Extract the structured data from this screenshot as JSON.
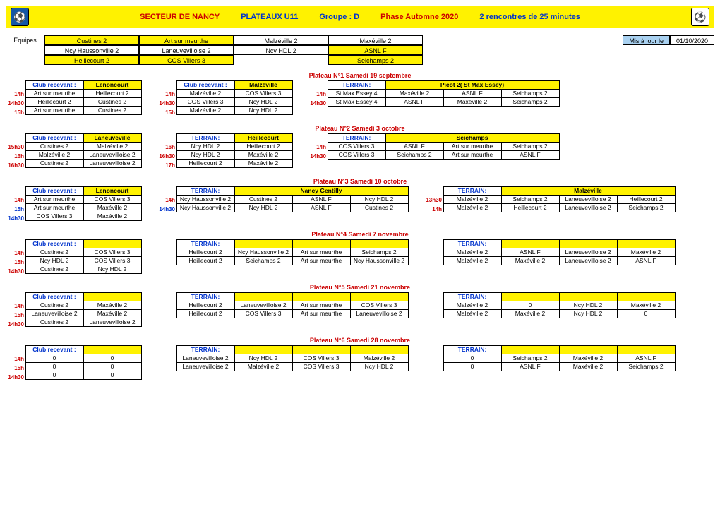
{
  "header": {
    "t1": "SECTEUR DE NANCY",
    "t2": "PLATEAUX U11",
    "t3": "Groupe : D",
    "t4": "Phase Automne 2020",
    "t5": "2 rencontres de 25 minutes"
  },
  "equipes_label": "Equipes",
  "equipes": [
    [
      "Custines 2",
      "Art sur meurthe",
      "Malzéville 2",
      "Maxéville 2"
    ],
    [
      "Ncy Haussonville 2",
      "Laneuvevilloise 2",
      "Ncy HDL 2",
      "ASNL F"
    ],
    [
      "Heillecourt 2",
      "COS Villers  3",
      "",
      "Seichamps 2"
    ]
  ],
  "equipes_yellow": [
    [
      0,
      1
    ],
    [
      3
    ],
    [
      0,
      1,
      3
    ]
  ],
  "maj_label": "Mis à jour le",
  "maj_date": "01/10/2020",
  "club_recevant": "Club recevant :",
  "terrain": "TERRAIN:",
  "plateaux": [
    {
      "title": "Plateau N°1 Samedi 19 septembre",
      "blocks": [
        {
          "w": 2,
          "hdr": [
            "Club recevant :",
            "Lenoncourt"
          ],
          "times": [
            "14h",
            "14h30",
            "15h"
          ],
          "rows": [
            [
              "Art sur meurthe",
              "Heillecourt 2"
            ],
            [
              "Heillecourt 2",
              "Custines 2"
            ],
            [
              "Art sur meurthe",
              "Custines 2"
            ]
          ]
        },
        {
          "w": 2,
          "hdr": [
            "Club recevant :",
            "Malzéville"
          ],
          "times": [
            "14h",
            "14h30",
            "15h"
          ],
          "rows": [
            [
              "Malzéville 2",
              "COS Villers  3"
            ],
            [
              "COS Villers  3",
              "Ncy HDL 2"
            ],
            [
              "Malzéville 2",
              "Ncy HDL 2"
            ]
          ]
        },
        {
          "w": 4,
          "hdr": [
            "TERRAIN:",
            "Picot 2( St Max Essey)",
            "",
            ""
          ],
          "hdrspan": [
            1,
            3
          ],
          "times": [
            "14h",
            "14h30"
          ],
          "rows": [
            [
              "St Max Essey 4",
              "Maxéville 2",
              "ASNL F",
              "Seichamps 2"
            ],
            [
              "St Max Essey 4",
              "ASNL F",
              "Maxéville 2",
              "Seichamps 2"
            ]
          ]
        }
      ]
    },
    {
      "title": "Plateau N°2 Samedi 3 octobre",
      "blocks": [
        {
          "w": 2,
          "hdr": [
            "Club recevant :",
            "Laneuveville"
          ],
          "times": [
            "15h30",
            "16h",
            "16h30"
          ],
          "rows": [
            [
              "Custines 2",
              "Malzéville 2"
            ],
            [
              "Malzéville 2",
              "Laneuvevilloise 2"
            ],
            [
              "Custines 2",
              "Laneuvevilloise 2"
            ]
          ]
        },
        {
          "w": 2,
          "hdr": [
            "TERRAIN:",
            "Heillecourt"
          ],
          "times": [
            "16h",
            "16h30",
            "17h"
          ],
          "rows": [
            [
              "Ncy HDL 2",
              "Heillecourt 2"
            ],
            [
              "Ncy HDL 2",
              "Maxéville 2"
            ],
            [
              "Heillecourt 2",
              "Maxéville 2"
            ]
          ]
        },
        {
          "w": 4,
          "hdr": [
            "TERRAIN:",
            "Seichamps",
            "",
            ""
          ],
          "hdrspan": [
            1,
            3
          ],
          "times": [
            "14h",
            "14h30"
          ],
          "rows": [
            [
              "COS Villers  3",
              "ASNL F",
              "Art sur meurthe",
              "Seichamps 2"
            ],
            [
              "COS Villers  3",
              "Seichamps 2",
              "Art sur meurthe",
              "ASNL F"
            ]
          ]
        }
      ]
    },
    {
      "title": "Plateau N°3 Samedi 10 octobre",
      "blocks": [
        {
          "w": 2,
          "hdr": [
            "Club recevant :",
            "Lenoncourt"
          ],
          "times": [
            "14h",
            "15h",
            "14h30"
          ],
          "timesColor": [
            "red",
            "blue",
            "blue"
          ],
          "rows": [
            [
              "Art sur meurthe",
              "COS Villers  3"
            ],
            [
              "Art sur meurthe",
              "Maxéville 2"
            ],
            [
              "COS Villers  3",
              "Maxéville 2"
            ]
          ]
        },
        {
          "w": 4,
          "hdr": [
            "TERRAIN:",
            "Nancy Gentilly",
            "",
            ""
          ],
          "hdrspan": [
            1,
            3
          ],
          "times": [
            "14h",
            "14h30"
          ],
          "timesColor": [
            "red",
            "blue"
          ],
          "rows": [
            [
              "Ncy Haussonville 2",
              "Custines 2",
              "ASNL F",
              "Ncy HDL 2"
            ],
            [
              "Ncy Haussonville 2",
              "Ncy HDL 2",
              "ASNL F",
              "Custines 2"
            ]
          ]
        },
        {
          "w": 4,
          "hdr": [
            "TERRAIN:",
            "Malzéville",
            "",
            ""
          ],
          "hdrspan": [
            1,
            3
          ],
          "times": [
            "13h30",
            "14h"
          ],
          "rows": [
            [
              "Malzéville 2",
              "Seichamps 2",
              "Laneuvevilloise 2",
              "Heillecourt 2"
            ],
            [
              "Malzéville 2",
              "Heillecourt 2",
              "Laneuvevilloise 2",
              "Seichamps 2"
            ]
          ]
        }
      ]
    },
    {
      "title": "Plateau N°4 Samedi 7 novembre",
      "blocks": [
        {
          "w": 2,
          "hdr": [
            "Club recevant :",
            ""
          ],
          "times": [
            "14h",
            "15h",
            "14h30"
          ],
          "rows": [
            [
              "Custines 2",
              "COS Villers  3"
            ],
            [
              "Ncy HDL 2",
              "COS Villers  3"
            ],
            [
              "Custines 2",
              "Ncy HDL 2"
            ]
          ]
        },
        {
          "w": 4,
          "hdr": [
            "TERRAIN:",
            "",
            "",
            ""
          ],
          "times": [
            "",
            ""
          ],
          "rows": [
            [
              "Heillecourt 2",
              "Ncy Haussonville 2",
              "Art sur meurthe",
              "Seichamps 2"
            ],
            [
              "Heillecourt 2",
              "Seichamps 2",
              "Art sur meurthe",
              "Ncy Haussonville 2"
            ]
          ]
        },
        {
          "w": 4,
          "hdr": [
            "TERRAIN:",
            "",
            "",
            ""
          ],
          "times": [
            "",
            ""
          ],
          "rows": [
            [
              "Malzéville 2",
              "ASNL F",
              "Laneuvevilloise 2",
              "Maxéville 2"
            ],
            [
              "Malzéville 2",
              "Maxéville 2",
              "Laneuvevilloise 2",
              "ASNL F"
            ]
          ]
        }
      ]
    },
    {
      "title": "Plateau N°5 Samedi 21 novembre",
      "blocks": [
        {
          "w": 2,
          "hdr": [
            "Club recevant :",
            ""
          ],
          "times": [
            "14h",
            "15h",
            "14h30"
          ],
          "rows": [
            [
              "Custines 2",
              "Maxéville 2"
            ],
            [
              "Laneuvevilloise 2",
              "Maxéville 2"
            ],
            [
              "Custines 2",
              "Laneuvevilloise 2"
            ]
          ]
        },
        {
          "w": 4,
          "hdr": [
            "TERRAIN:",
            "",
            "",
            ""
          ],
          "times": [
            "",
            ""
          ],
          "rows": [
            [
              "Heillecourt 2",
              "Laneuvevilloise 2",
              "Art sur meurthe",
              "COS Villers  3"
            ],
            [
              "Heillecourt 2",
              "COS Villers  3",
              "Art sur meurthe",
              "Laneuvevilloise 2"
            ]
          ]
        },
        {
          "w": 4,
          "hdr": [
            "TERRAIN:",
            "",
            "",
            ""
          ],
          "times": [
            "",
            ""
          ],
          "rows": [
            [
              "Malzéville 2",
              "0",
              "Ncy HDL 2",
              "Maxéville 2"
            ],
            [
              "Malzéville 2",
              "Maxéville 2",
              "Ncy HDL 2",
              "0"
            ]
          ]
        }
      ]
    },
    {
      "title": "Plateau N°6 Samedi 28 novembre",
      "blocks": [
        {
          "w": 2,
          "hdr": [
            "Club recevant :",
            ""
          ],
          "times": [
            "14h",
            "15h",
            "14h30"
          ],
          "rows": [
            [
              "0",
              "0"
            ],
            [
              "0",
              "0"
            ],
            [
              "0",
              "0"
            ]
          ]
        },
        {
          "w": 4,
          "hdr": [
            "TERRAIN:",
            "",
            "",
            ""
          ],
          "times": [
            "",
            ""
          ],
          "rows": [
            [
              "Laneuvevilloise 2",
              "Ncy HDL 2",
              "COS Villers  3",
              "Malzéville 2"
            ],
            [
              "Laneuvevilloise 2",
              "Malzéville 2",
              "COS Villers  3",
              "Ncy HDL 2"
            ]
          ]
        },
        {
          "w": 4,
          "hdr": [
            "TERRAIN:",
            "",
            "",
            ""
          ],
          "times": [
            "",
            ""
          ],
          "rows": [
            [
              "0",
              "Seichamps 2",
              "Maxéville 2",
              "ASNL F"
            ],
            [
              "0",
              "ASNL F",
              "Maxéville 2",
              "Seichamps 2"
            ]
          ]
        }
      ]
    }
  ]
}
